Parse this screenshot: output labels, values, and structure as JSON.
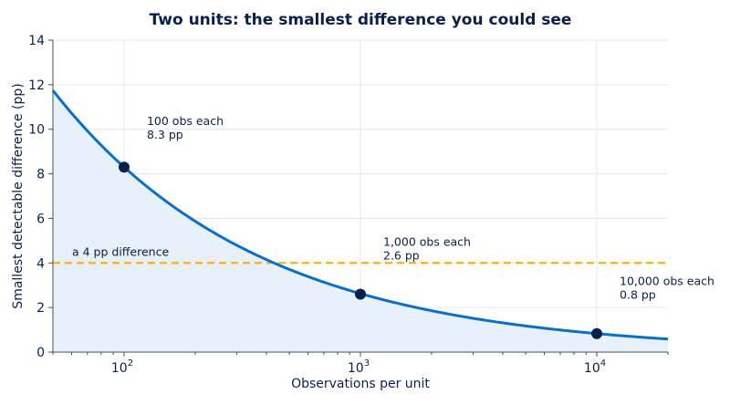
{
  "chart_data": {
    "type": "line",
    "title": "Two units: the smallest difference you could see",
    "xlabel": "Observations per unit",
    "ylabel": "Smallest detectable difference (pp)",
    "x_scale": "log",
    "xlim": [
      50,
      20000
    ],
    "ylim": [
      0,
      14
    ],
    "grid": true,
    "x_ticks": [
      {
        "base": "10",
        "exp": "2",
        "value": 100
      },
      {
        "base": "10",
        "exp": "3",
        "value": 1000
      },
      {
        "base": "10",
        "exp": "4",
        "value": 10000
      }
    ],
    "y_ticks": [
      {
        "label": "0",
        "value": 0
      },
      {
        "label": "2",
        "value": 2
      },
      {
        "label": "4",
        "value": 4
      },
      {
        "label": "6",
        "value": 6
      },
      {
        "label": "8",
        "value": 8
      },
      {
        "label": "10",
        "value": 10
      },
      {
        "label": "12",
        "value": 12
      },
      {
        "label": "14",
        "value": 14
      }
    ],
    "series": [
      {
        "x": [
          50,
          70,
          100,
          150,
          200,
          300,
          500,
          700,
          1000,
          1500,
          2000,
          3000,
          5000,
          7000,
          10000,
          15000,
          20000
        ],
        "values": [
          11.7,
          9.9,
          8.3,
          6.8,
          5.9,
          4.8,
          3.7,
          3.1,
          2.6,
          2.15,
          1.85,
          1.52,
          1.18,
          1.0,
          0.83,
          0.68,
          0.59
        ],
        "color": "#0a6fc9",
        "fill": "#e8f0fa"
      }
    ],
    "threshold": {
      "value": 4,
      "label": "a 4 pp difference",
      "color": "#f5b21a"
    },
    "markers": [
      {
        "x": 100,
        "y": 8.3,
        "line1": "100 obs each",
        "line2": "8.3 pp"
      },
      {
        "x": 1000,
        "y": 2.6,
        "line1": "1,000 obs each",
        "line2": "2.6 pp"
      },
      {
        "x": 10000,
        "y": 0.83,
        "line1": "10,000 obs each",
        "line2": "0.8 pp"
      }
    ],
    "marker_color": "#0b1f4d"
  }
}
